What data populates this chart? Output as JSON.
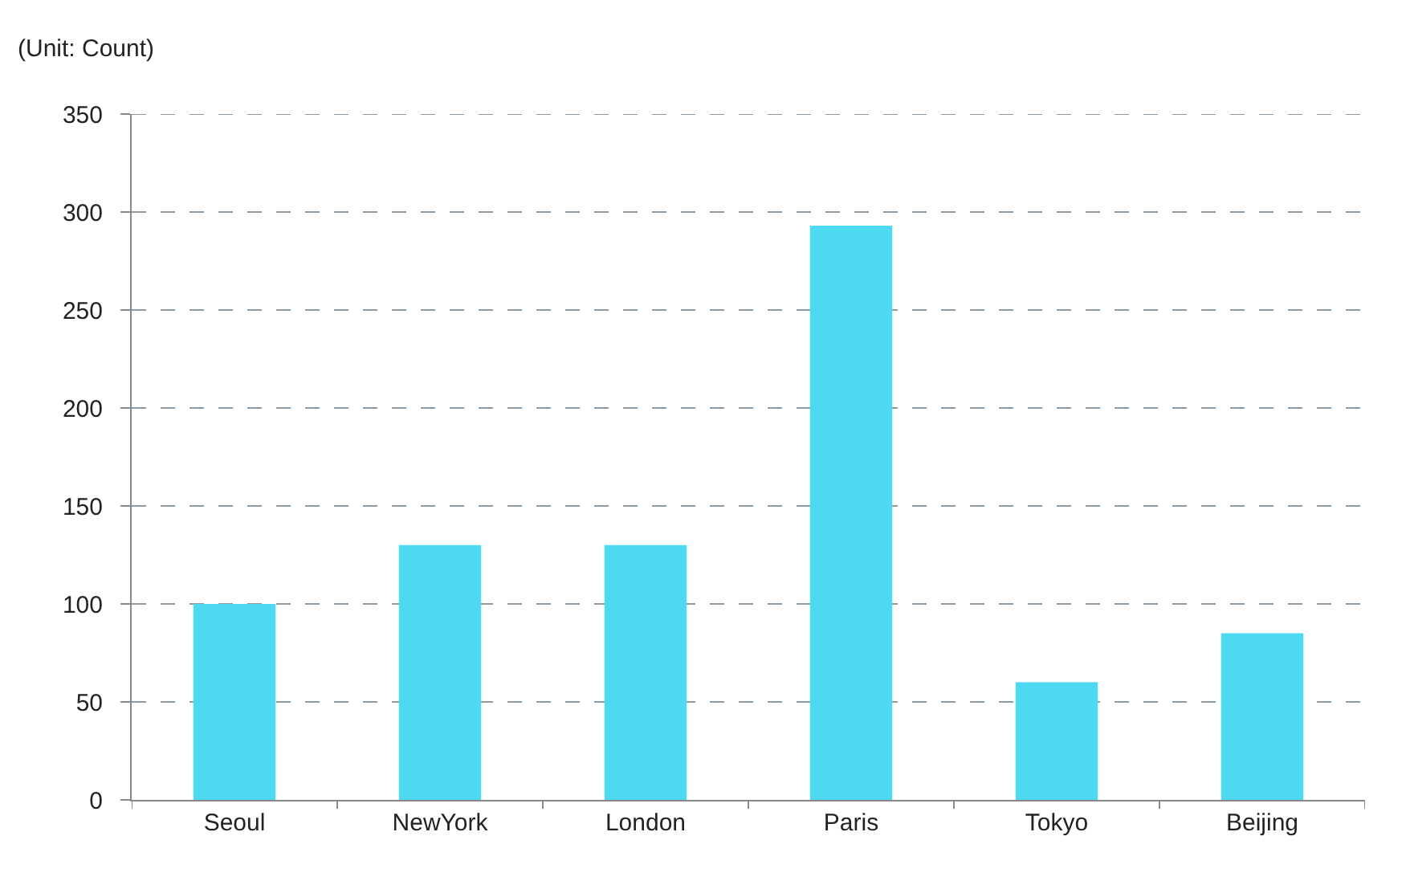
{
  "chart_data": {
    "type": "bar",
    "ylabel": "(Unit: Count)",
    "categories": [
      "Seoul",
      "NewYork",
      "London",
      "Paris",
      "Tokyo",
      "Beijing"
    ],
    "values": [
      100,
      130,
      130,
      293,
      60,
      85
    ],
    "color": "#4dd9f2",
    "ylim": [
      0,
      350
    ],
    "yticks": [
      0,
      50,
      100,
      150,
      200,
      250,
      300,
      350
    ],
    "grid": "y",
    "line_style": "dashed"
  }
}
